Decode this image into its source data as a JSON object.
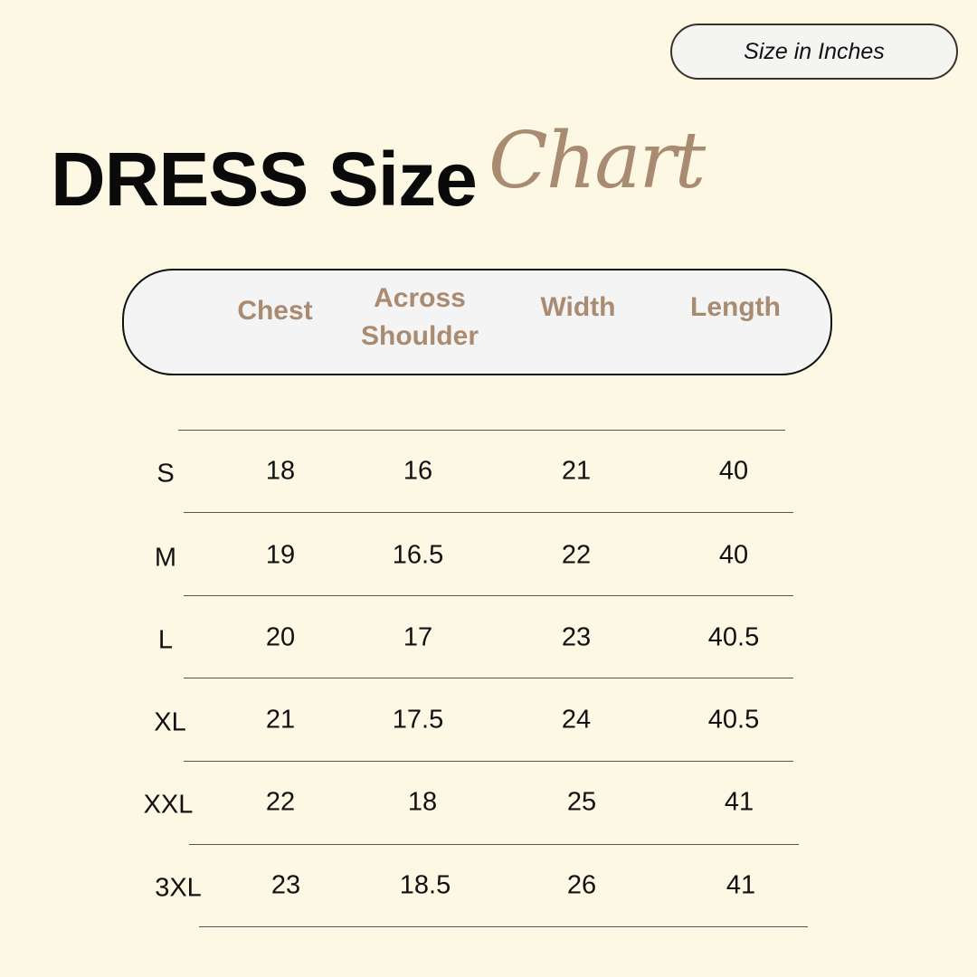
{
  "unit_badge": "Size in Inches",
  "title": {
    "bold": "DRESS Size",
    "script": "Chart"
  },
  "colors": {
    "background": "#fdf8e3",
    "accent": "#a98b72",
    "header_fill": "#f4f4f4"
  },
  "columns": [
    "Chest",
    "Across Shoulder",
    "Width",
    "Length"
  ],
  "rows": [
    {
      "size": "S",
      "values": [
        "18",
        "16",
        "21",
        "40"
      ]
    },
    {
      "size": "M",
      "values": [
        "19",
        "16.5",
        "22",
        "40"
      ]
    },
    {
      "size": "L",
      "values": [
        "20",
        "17",
        "23",
        "40.5"
      ]
    },
    {
      "size": "XL",
      "values": [
        "21",
        "17.5",
        "24",
        "40.5"
      ]
    },
    {
      "size": "XXL",
      "values": [
        "22",
        "18",
        "25",
        "41"
      ]
    },
    {
      "size": "3XL",
      "values": [
        "23",
        "18.5",
        "26",
        "41"
      ]
    }
  ]
}
